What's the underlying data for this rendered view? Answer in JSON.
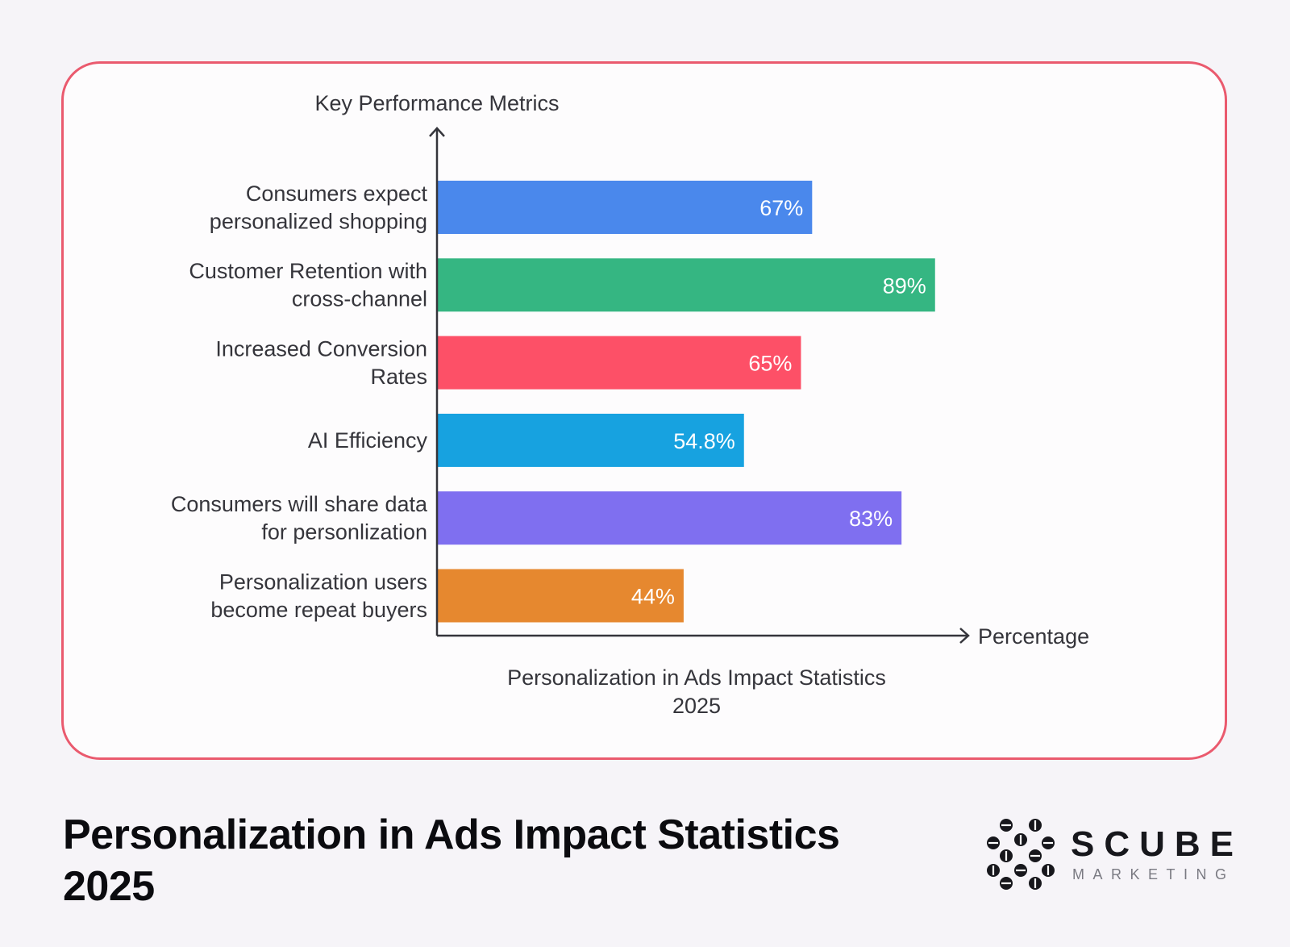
{
  "colors": {
    "card_border": "#ea5a6e",
    "background": "#f6f4f8",
    "axis": "#35353b"
  },
  "chart_data": {
    "type": "bar",
    "orientation": "horizontal",
    "title_lines": [
      "Personalization in Ads Impact Statistics",
      "2025"
    ],
    "ylabel": "Key Performance Metrics",
    "xlabel": "Percentage",
    "xlim": [
      0,
      100
    ],
    "grid": false,
    "categories": [
      [
        "Consumers expect",
        "personalized shopping"
      ],
      [
        "Customer Retention with",
        "cross-channel"
      ],
      [
        "Increased Conversion",
        "Rates"
      ],
      [
        "AI Efficiency"
      ],
      [
        "Consumers will share data",
        "for personlization"
      ],
      [
        "Personalization users",
        "become repeat buyers"
      ]
    ],
    "values": [
      67,
      89,
      65,
      54.8,
      83,
      44
    ],
    "value_labels": [
      "67%",
      "89%",
      "65%",
      "54.8%",
      "83%",
      "44%"
    ],
    "bar_colors": [
      "#4a88ec",
      "#35b682",
      "#fd5067",
      "#17a2e0",
      "#7f6ff0",
      "#e6882f"
    ]
  },
  "footer": {
    "title_line1": "Personalization in Ads Impact Statistics",
    "title_line2": "2025"
  },
  "brand": {
    "name": "SCUBE",
    "sub": "MARKETING",
    "icon": "scube-logo-icon"
  }
}
